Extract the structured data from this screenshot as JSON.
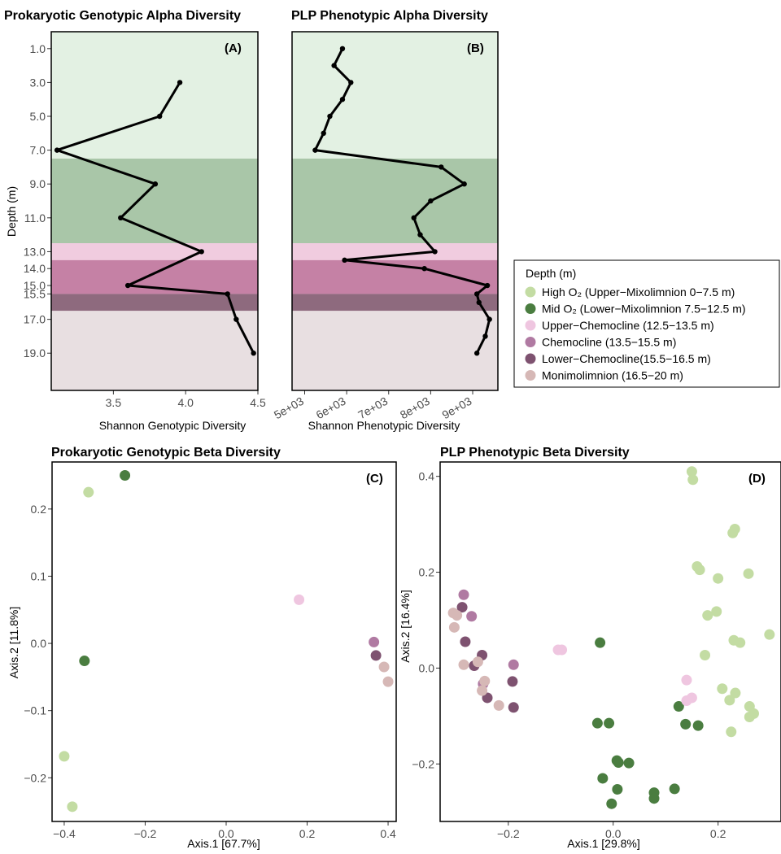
{
  "colors": {
    "high_o2": "#c3dca3",
    "mid_o2": "#4a7d40",
    "upper_chemocline": "#efc6e0",
    "chemocline": "#b07aa2",
    "lower_chemocline": "#7e5270",
    "monimolimnion": "#d6b8b6",
    "band_high": "#e3f1e3",
    "band_mid": "#a9c6a8",
    "band_upper_chemo": "#f0ccdf",
    "band_chemo": "#c581a5",
    "band_lower_chemo": "#8e6a7e",
    "band_moni": "#e8dfe1"
  },
  "legend": {
    "title": "Depth (m)",
    "items": [
      {
        "key": "high_o2",
        "label": "High O₂ (Upper−Mixolimnion 0−7.5 m)"
      },
      {
        "key": "mid_o2",
        "label": "Mid O₂ (Lower−Mixolimnion 7.5−12.5 m)"
      },
      {
        "key": "upper_chemocline",
        "label": "Upper−Chemocline (12.5−13.5 m)"
      },
      {
        "key": "chemocline",
        "label": "Chemocline (13.5−15.5 m)"
      },
      {
        "key": "lower_chemocline",
        "label": "Lower−Chemocline(15.5−16.5 m)"
      },
      {
        "key": "monimolimnion",
        "label": "Monimolimnion (16.5−20 m)"
      }
    ]
  },
  "chart_data": [
    {
      "id": "A",
      "type": "line",
      "title": "Prokaryotic Genotypic Alpha Diversity",
      "tag": "(A)",
      "xlabel": "Shannon Genotypic Diversity",
      "ylabel": "Depth (m)",
      "xlim": [
        3.07,
        4.5
      ],
      "ylim": [
        0,
        21.2
      ],
      "y_reversed": true,
      "xticks": [
        3.5,
        4.0,
        4.5
      ],
      "xtick_labels": [
        "3.5",
        "4.0",
        "4.5"
      ],
      "yticks": [
        1,
        3,
        5,
        7,
        9,
        11,
        13,
        14,
        15,
        15.5,
        17,
        19
      ],
      "ytick_labels": [
        "1.0",
        "3.0",
        "5.0",
        "7.0",
        "9.0",
        "11.0",
        "13.0",
        "14.0",
        "15.0",
        "15.5",
        "17.0",
        "19.0"
      ],
      "bands": [
        {
          "from": 0,
          "to": 7.5,
          "key": "band_high"
        },
        {
          "from": 7.5,
          "to": 12.5,
          "key": "band_mid"
        },
        {
          "from": 12.5,
          "to": 13.5,
          "key": "band_upper_chemo"
        },
        {
          "from": 13.5,
          "to": 15.5,
          "key": "band_chemo"
        },
        {
          "from": 15.5,
          "to": 16.5,
          "key": "band_lower_chemo"
        },
        {
          "from": 16.5,
          "to": 21.2,
          "key": "band_moni"
        }
      ],
      "series": [
        {
          "x": [
            3.96,
            3.82,
            3.11,
            3.79,
            3.55,
            4.11,
            3.6,
            4.29,
            4.35,
            4.47
          ],
          "y": [
            3,
            5,
            7,
            9,
            11,
            13,
            15,
            15.5,
            17,
            19
          ]
        }
      ]
    },
    {
      "id": "B",
      "type": "line",
      "title": "PLP Phenotypic Alpha Diversity",
      "tag": "(B)",
      "xlabel": "Shannon Phenotypic Diversity",
      "xlim": [
        4700,
        9600
      ],
      "ylim": [
        0,
        21.2
      ],
      "y_reversed": true,
      "xticks": [
        5000,
        6000,
        7000,
        8000,
        9000
      ],
      "xtick_labels": [
        "5e+03",
        "6e+03",
        "7e+03",
        "8e+03",
        "9e+03"
      ],
      "bands": [
        {
          "from": 0,
          "to": 7.5,
          "key": "band_high"
        },
        {
          "from": 7.5,
          "to": 12.5,
          "key": "band_mid"
        },
        {
          "from": 12.5,
          "to": 13.5,
          "key": "band_upper_chemo"
        },
        {
          "from": 13.5,
          "to": 15.5,
          "key": "band_chemo"
        },
        {
          "from": 15.5,
          "to": 16.5,
          "key": "band_lower_chemo"
        },
        {
          "from": 16.5,
          "to": 21.2,
          "key": "band_moni"
        }
      ],
      "series": [
        {
          "x": [
            5900,
            5700,
            6100,
            5900,
            5600,
            5450,
            5250,
            8250,
            8800,
            8000,
            7600,
            7750,
            8100,
            5950,
            7850,
            9350,
            9100,
            9150,
            9400,
            9300,
            9100
          ],
          "y": [
            1,
            2,
            3,
            4,
            5,
            6,
            7,
            8,
            9,
            10,
            11,
            12,
            13,
            13.5,
            14,
            15,
            15.5,
            16,
            17,
            18,
            19
          ]
        }
      ]
    },
    {
      "id": "C",
      "type": "scatter",
      "title": "Prokaryotic Genotypic Beta Diversity",
      "tag": "(C)",
      "xlabel": "Axis.1   [67.7%]",
      "ylabel": "Axis.2   [11.8%]",
      "xlim": [
        -0.43,
        0.42
      ],
      "ylim": [
        -0.265,
        0.27
      ],
      "xticks": [
        -0.4,
        -0.2,
        0.0,
        0.2,
        0.4
      ],
      "xtick_labels": [
        "−0.4",
        "−0.2",
        "0.0",
        "0.2",
        "0.4"
      ],
      "yticks": [
        0.2,
        0.1,
        0.0,
        -0.1,
        -0.2
      ],
      "ytick_labels": [
        "0.2",
        "0.1",
        "0.0",
        "−0.1",
        "−0.2"
      ],
      "points": [
        {
          "x": -0.34,
          "y": 0.225,
          "group": "high_o2"
        },
        {
          "x": -0.25,
          "y": 0.25,
          "group": "mid_o2"
        },
        {
          "x": -0.35,
          "y": -0.026,
          "group": "mid_o2"
        },
        {
          "x": -0.4,
          "y": -0.168,
          "group": "high_o2"
        },
        {
          "x": -0.38,
          "y": -0.243,
          "group": "high_o2"
        },
        {
          "x": 0.18,
          "y": 0.065,
          "group": "upper_chemocline"
        },
        {
          "x": 0.365,
          "y": 0.002,
          "group": "chemocline"
        },
        {
          "x": 0.37,
          "y": -0.018,
          "group": "lower_chemocline"
        },
        {
          "x": 0.39,
          "y": -0.035,
          "group": "monimolimnion"
        },
        {
          "x": 0.4,
          "y": -0.057,
          "group": "monimolimnion"
        }
      ]
    },
    {
      "id": "D",
      "type": "scatter",
      "title": "PLP Phenotypic Beta Diversity",
      "tag": "(D)",
      "xlabel": "Axis.1 [29.8%]",
      "ylabel": "Axis.2  [16.4%]",
      "xlim": [
        -0.33,
        0.32
      ],
      "ylim": [
        -0.32,
        0.43
      ],
      "xticks": [
        -0.2,
        0.0,
        0.2
      ],
      "xtick_labels": [
        "−0.2",
        "0.0",
        "0.2"
      ],
      "yticks": [
        0.4,
        0.2,
        0.0,
        -0.2
      ],
      "ytick_labels": [
        "0.4",
        "0.2",
        "0.0",
        "−0.2"
      ],
      "points": [
        {
          "x": 0.15,
          "y": 0.41,
          "group": "high_o2"
        },
        {
          "x": 0.152,
          "y": 0.393,
          "group": "high_o2"
        },
        {
          "x": 0.232,
          "y": 0.29,
          "group": "high_o2"
        },
        {
          "x": 0.228,
          "y": 0.282,
          "group": "high_o2"
        },
        {
          "x": 0.16,
          "y": 0.212,
          "group": "high_o2"
        },
        {
          "x": 0.165,
          "y": 0.205,
          "group": "high_o2"
        },
        {
          "x": 0.258,
          "y": 0.197,
          "group": "high_o2"
        },
        {
          "x": 0.2,
          "y": 0.187,
          "group": "high_o2"
        },
        {
          "x": 0.197,
          "y": 0.118,
          "group": "high_o2"
        },
        {
          "x": 0.18,
          "y": 0.11,
          "group": "high_o2"
        },
        {
          "x": 0.298,
          "y": 0.07,
          "group": "high_o2"
        },
        {
          "x": 0.23,
          "y": 0.058,
          "group": "high_o2"
        },
        {
          "x": 0.242,
          "y": 0.053,
          "group": "high_o2"
        },
        {
          "x": 0.175,
          "y": 0.027,
          "group": "high_o2"
        },
        {
          "x": 0.208,
          "y": -0.043,
          "group": "high_o2"
        },
        {
          "x": 0.233,
          "y": -0.052,
          "group": "high_o2"
        },
        {
          "x": 0.222,
          "y": -0.067,
          "group": "high_o2"
        },
        {
          "x": 0.26,
          "y": -0.08,
          "group": "high_o2"
        },
        {
          "x": 0.268,
          "y": -0.095,
          "group": "high_o2"
        },
        {
          "x": 0.26,
          "y": -0.102,
          "group": "high_o2"
        },
        {
          "x": 0.225,
          "y": -0.133,
          "group": "high_o2"
        },
        {
          "x": -0.025,
          "y": 0.053,
          "group": "mid_o2"
        },
        {
          "x": 0.125,
          "y": -0.08,
          "group": "mid_o2"
        },
        {
          "x": -0.03,
          "y": -0.115,
          "group": "mid_o2"
        },
        {
          "x": -0.008,
          "y": -0.115,
          "group": "mid_o2"
        },
        {
          "x": 0.138,
          "y": -0.117,
          "group": "mid_o2"
        },
        {
          "x": 0.162,
          "y": -0.12,
          "group": "mid_o2"
        },
        {
          "x": 0.007,
          "y": -0.193,
          "group": "mid_o2"
        },
        {
          "x": 0.01,
          "y": -0.197,
          "group": "mid_o2"
        },
        {
          "x": 0.03,
          "y": -0.198,
          "group": "mid_o2"
        },
        {
          "x": -0.02,
          "y": -0.23,
          "group": "mid_o2"
        },
        {
          "x": 0.008,
          "y": -0.253,
          "group": "mid_o2"
        },
        {
          "x": 0.117,
          "y": -0.252,
          "group": "mid_o2"
        },
        {
          "x": 0.078,
          "y": -0.26,
          "group": "mid_o2"
        },
        {
          "x": 0.078,
          "y": -0.272,
          "group": "mid_o2"
        },
        {
          "x": -0.003,
          "y": -0.283,
          "group": "mid_o2"
        },
        {
          "x": -0.105,
          "y": 0.038,
          "group": "upper_chemocline"
        },
        {
          "x": -0.098,
          "y": 0.038,
          "group": "upper_chemocline"
        },
        {
          "x": 0.14,
          "y": -0.025,
          "group": "upper_chemocline"
        },
        {
          "x": 0.15,
          "y": -0.062,
          "group": "upper_chemocline"
        },
        {
          "x": 0.14,
          "y": -0.068,
          "group": "upper_chemocline"
        },
        {
          "x": -0.285,
          "y": 0.153,
          "group": "chemocline"
        },
        {
          "x": -0.27,
          "y": 0.108,
          "group": "chemocline"
        },
        {
          "x": -0.19,
          "y": 0.007,
          "group": "chemocline"
        },
        {
          "x": -0.248,
          "y": -0.033,
          "group": "chemocline"
        },
        {
          "x": -0.288,
          "y": 0.127,
          "group": "lower_chemocline"
        },
        {
          "x": -0.282,
          "y": 0.055,
          "group": "lower_chemocline"
        },
        {
          "x": -0.25,
          "y": 0.027,
          "group": "lower_chemocline"
        },
        {
          "x": -0.265,
          "y": 0.005,
          "group": "lower_chemocline"
        },
        {
          "x": -0.192,
          "y": -0.028,
          "group": "lower_chemocline"
        },
        {
          "x": -0.24,
          "y": -0.062,
          "group": "lower_chemocline"
        },
        {
          "x": -0.19,
          "y": -0.082,
          "group": "lower_chemocline"
        },
        {
          "x": -0.305,
          "y": 0.115,
          "group": "monimolimnion"
        },
        {
          "x": -0.298,
          "y": 0.11,
          "group": "monimolimnion"
        },
        {
          "x": -0.303,
          "y": 0.085,
          "group": "monimolimnion"
        },
        {
          "x": -0.285,
          "y": 0.007,
          "group": "monimolimnion"
        },
        {
          "x": -0.258,
          "y": 0.013,
          "group": "monimolimnion"
        },
        {
          "x": -0.245,
          "y": -0.027,
          "group": "monimolimnion"
        },
        {
          "x": -0.25,
          "y": -0.047,
          "group": "monimolimnion"
        },
        {
          "x": -0.218,
          "y": -0.078,
          "group": "monimolimnion"
        }
      ]
    }
  ]
}
